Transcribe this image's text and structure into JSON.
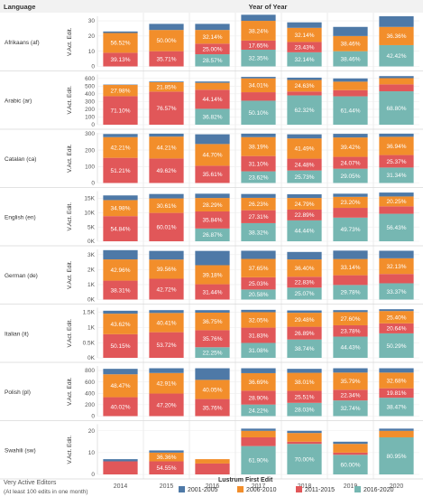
{
  "header": {
    "row_header": "Language",
    "col_header": "Year of Year"
  },
  "footer": {
    "title": "Very Active Editors",
    "subtitle": "(At least 100 edits in one month)"
  },
  "legend": {
    "title": "Lustrum First Edit",
    "items": [
      {
        "label": "2001-2005",
        "color": "#4e79a7"
      },
      {
        "label": "2006-2010",
        "color": "#f28e2b"
      },
      {
        "label": "2011-2015",
        "color": "#e15759"
      },
      {
        "label": "2016-2020",
        "color": "#76b7b2"
      }
    ]
  },
  "chart_data": {
    "type": "bar",
    "stacked": true,
    "x": [
      "2014",
      "2015",
      "2016",
      "2017",
      "2018",
      "2019",
      "2020"
    ],
    "series_order": [
      "2016-2020",
      "2011-2015",
      "2006-2010",
      "2001-2005"
    ],
    "colors": {
      "2001-2005": "#4e79a7",
      "2006-2010": "#f28e2b",
      "2011-2015": "#e15759",
      "2016-2020": "#76b7b2"
    },
    "ylabel": "V.Act. Edit.",
    "grid": true,
    "panels": [
      {
        "name": "Afrikaans (af)",
        "ticks": [
          "0",
          "10",
          "20",
          "30"
        ],
        "tick_values": [
          0,
          10,
          20,
          30
        ],
        "ylim": [
          0,
          33
        ],
        "totals": [
          23,
          28,
          28,
          34,
          29,
          26,
          33
        ],
        "segments": {
          "2016-2020": [
            0,
            0,
            8,
            11,
            9.3,
            10,
            14
          ],
          "2011-2015": [
            9,
            10,
            7,
            6,
            6.8,
            0,
            0
          ],
          "2006-2010": [
            13,
            14,
            9,
            13,
            9.3,
            10,
            12
          ],
          "2001-2005": [
            1,
            4,
            4,
            4,
            3.6,
            6,
            7
          ]
        },
        "labels": {
          "2016-2020": [
            "",
            "",
            "28.57%",
            "32.35%",
            "32.14%",
            "38.46%",
            "42.42%"
          ],
          "2011-2015": [
            "39.13%",
            "35.71%",
            "25.00%",
            "17.65%",
            "23.43%",
            "",
            ""
          ],
          "2006-2010": [
            "56.52%",
            "50.00%",
            "32.14%",
            "38.24%",
            "32.14%",
            "38.46%",
            "36.36%"
          ]
        }
      },
      {
        "name": "Arabic (ar)",
        "ticks": [
          "0",
          "100",
          "200",
          "300",
          "400",
          "500",
          "600"
        ],
        "tick_values": [
          0,
          100,
          200,
          300,
          400,
          500,
          600
        ],
        "ylim": [
          0,
          650
        ],
        "totals": [
          520,
          560,
          560,
          620,
          610,
          600,
          630
        ],
        "segments": {
          "2016-2020": [
            0,
            0,
            206,
            311,
            380,
            368,
            433
          ],
          "2011-2015": [
            370,
            429,
            247,
            110,
            50,
            80,
            90
          ],
          "2006-2010": [
            145,
            122,
            90,
            180,
            150,
            110,
            80
          ],
          "2001-2005": [
            5,
            9,
            17,
            19,
            30,
            42,
            27
          ]
        },
        "labels": {
          "2016-2020": [
            "",
            "",
            "36.82%",
            "50.10%",
            "62.32%",
            "61.44%",
            "68.80%"
          ],
          "2011-2015": [
            "71.10%",
            "76.57%",
            "44.14%",
            "",
            "",
            "",
            ""
          ],
          "2006-2010": [
            "27.98%",
            "21.85%",
            "",
            "34.01%",
            "24.63%",
            "",
            ""
          ]
        }
      },
      {
        "name": "Catalan (ca)",
        "ticks": [
          "0",
          "100",
          "200",
          "300"
        ],
        "tick_values": [
          0,
          100,
          200,
          300
        ],
        "ylim": [
          0,
          305
        ],
        "totals": [
          298,
          300,
          296,
          300,
          296,
          299,
          300
        ],
        "segments": {
          "2016-2020": [
            0,
            0,
            0,
            71,
            76,
            87,
            94
          ],
          "2011-2015": [
            153,
            149,
            105,
            93,
            72,
            72,
            76
          ],
          "2006-2010": [
            126,
            133,
            132,
            115,
            123,
            118,
            111
          ],
          "2001-2005": [
            19,
            18,
            59,
            21,
            25,
            22,
            19
          ]
        },
        "labels": {
          "2016-2020": [
            "",
            "",
            "",
            "23.62%",
            "25.73%",
            "29.05%",
            "31.34%"
          ],
          "2011-2015": [
            "51.21%",
            "49.62%",
            "35.61%",
            "31.10%",
            "24.48%",
            "24.07%",
            "25.37%"
          ],
          "2006-2010": [
            "42.21%",
            "44.21%",
            "44.70%",
            "38.19%",
            "41.49%",
            "39.42%",
            "36.94%"
          ]
        }
      },
      {
        "name": "English (en)",
        "ticks": [
          "0K",
          "5K",
          "10K",
          "15K"
        ],
        "tick_values": [
          0,
          5000,
          10000,
          15000
        ],
        "ylim": [
          0,
          17500
        ],
        "totals": [
          16000,
          16500,
          16600,
          16500,
          16400,
          16600,
          17000
        ],
        "segments": {
          "2016-2020": [
            0,
            0,
            4460,
            6323,
            7288,
            8255,
            9592
          ],
          "2011-2015": [
            8774,
            9900,
            5950,
            4506,
            3754,
            3400,
            2600
          ],
          "2006-2010": [
            5597,
            5051,
            4696,
            4328,
            4066,
            3851,
            3443
          ],
          "2001-2005": [
            1629,
            1549,
            1494,
            1343,
            1292,
            1094,
            1365
          ]
        },
        "labels": {
          "2016-2020": [
            "",
            "",
            "26.87%",
            "38.32%",
            "44.44%",
            "49.73%",
            "56.43%"
          ],
          "2011-2015": [
            "54.84%",
            "60.01%",
            "35.84%",
            "27.31%",
            "22.89%",
            "",
            ""
          ],
          "2006-2010": [
            "34.98%",
            "30.61%",
            "28.29%",
            "26.23%",
            "24.79%",
            "23.20%",
            "20.25%"
          ]
        }
      },
      {
        "name": "German (de)",
        "ticks": [
          "0K",
          "1K",
          "2K",
          "3K"
        ],
        "tick_values": [
          0,
          1000,
          2000,
          3000
        ],
        "ylim": [
          0,
          3350
        ],
        "totals": [
          3300,
          3250,
          3250,
          3260,
          3180,
          3270,
          3260
        ],
        "segments": {
          "2016-2020": [
            0,
            0,
            0,
            671,
            797,
            974,
            1088
          ],
          "2011-2015": [
            1264,
            1388,
            1022,
            816,
            726,
            650,
            620
          ],
          "2006-2010": [
            1418,
            1286,
            1273,
            1227,
            1158,
            1084,
            1048
          ],
          "2001-2005": [
            618,
            576,
            955,
            546,
            499,
            562,
            504
          ]
        },
        "labels": {
          "2016-2020": [
            "",
            "",
            "",
            "20.58%",
            "25.07%",
            "29.78%",
            "33.37%"
          ],
          "2011-2015": [
            "38.31%",
            "42.72%",
            "31.44%",
            "25.03%",
            "22.83%",
            "",
            ""
          ],
          "2006-2010": [
            "42.96%",
            "39.56%",
            "39.18%",
            "37.65%",
            "36.40%",
            "33.14%",
            "32.13%"
          ]
        }
      },
      {
        "name": "Italian (it)",
        "ticks": [
          "0K",
          "0.5K",
          "1K",
          "1.5K"
        ],
        "tick_values": [
          0,
          500,
          1000,
          1500
        ],
        "ylim": [
          0,
          1650
        ],
        "totals": [
          1550,
          1570,
          1570,
          1580,
          1560,
          1570,
          1600
        ],
        "segments": {
          "2016-2020": [
            0,
            0,
            349,
            491,
            604,
            698,
            805
          ],
          "2011-2015": [
            777,
            843,
            561,
            503,
            419,
            373,
            330
          ],
          "2006-2010": [
            676,
            634,
            577,
            507,
            460,
            433,
            406
          ],
          "2001-2005": [
            97,
            93,
            83,
            79,
            77,
            66,
            59
          ]
        },
        "labels": {
          "2016-2020": [
            "",
            "",
            "22.25%",
            "31.08%",
            "38.74%",
            "44.43%",
            "50.29%"
          ],
          "2011-2015": [
            "50.15%",
            "53.72%",
            "35.76%",
            "31.83%",
            "26.89%",
            "23.78%",
            "20.64%"
          ],
          "2006-2010": [
            "43.62%",
            "40.41%",
            "36.75%",
            "32.05%",
            "29.48%",
            "27.60%",
            "25.40%"
          ]
        }
      },
      {
        "name": "Polish (pl)",
        "ticks": [
          "0",
          "200",
          "400",
          "600",
          "800"
        ],
        "tick_values": [
          0,
          200,
          400,
          600,
          800
        ],
        "ylim": [
          0,
          880
        ],
        "totals": [
          830,
          840,
          840,
          840,
          830,
          840,
          840
        ],
        "segments": {
          "2016-2020": [
            0,
            0,
            0,
            203,
            233,
            275,
            323
          ],
          "2011-2015": [
            332,
            396,
            300,
            243,
            212,
            188,
            166
          ],
          "2006-2010": [
            402,
            361,
            336,
            308,
            315,
            301,
            275
          ],
          "2001-2005": [
            96,
            83,
            204,
            86,
            70,
            76,
            76
          ]
        },
        "labels": {
          "2016-2020": [
            "",
            "",
            "",
            "24.22%",
            "28.03%",
            "32.74%",
            "38.47%"
          ],
          "2011-2015": [
            "40.02%",
            "47.20%",
            "35.76%",
            "28.90%",
            "25.51%",
            "22.34%",
            "19.81%"
          ],
          "2006-2010": [
            "48.47%",
            "42.91%",
            "40.05%",
            "36.69%",
            "38.01%",
            "35.79%",
            "32.68%"
          ]
        }
      },
      {
        "name": "Swahili (sw)",
        "ticks": [
          "0",
          "10",
          "20"
        ],
        "tick_values": [
          0,
          10,
          20
        ],
        "ylim": [
          0,
          23
        ],
        "totals": [
          7,
          11,
          7,
          21,
          20,
          15,
          21
        ],
        "segments": {
          "2016-2020": [
            0,
            0,
            0,
            13,
            14,
            9,
            17
          ],
          "2011-2015": [
            6,
            6,
            5,
            4,
            1,
            1,
            0
          ],
          "2006-2010": [
            0,
            4,
            2,
            3,
            4,
            4,
            3
          ],
          "2001-2005": [
            1,
            1,
            0,
            1,
            1,
            1,
            1
          ]
        },
        "labels": {
          "2016-2020": [
            "",
            "",
            "",
            "61.90%",
            "70.00%",
            "60.00%",
            "80.95%"
          ],
          "2011-2015": [
            "",
            "54.55%",
            "",
            "",
            "",
            "",
            ""
          ],
          "2006-2010": [
            "",
            "36.36%",
            "",
            "",
            "",
            "",
            ""
          ]
        }
      }
    ]
  }
}
